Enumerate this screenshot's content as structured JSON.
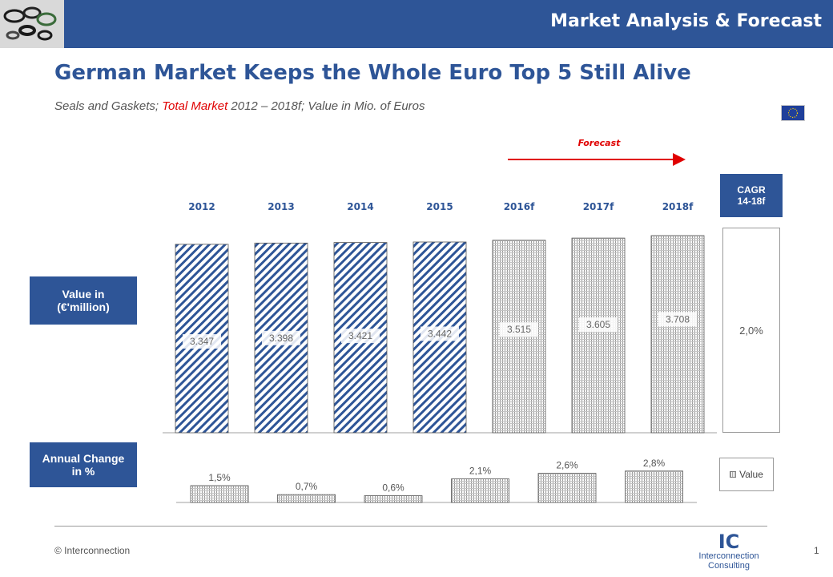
{
  "header": {
    "title": "Market Analysis & Forecast",
    "logo_icon": "seal-rings-icon"
  },
  "title": "German Market Keeps the Whole Euro Top 5 Still Alive",
  "subtitle": {
    "prefix": "Seals and Gaskets; ",
    "highlight": "Total Market",
    "suffix": " 2012 – 2018f; Value in Mio. of Euros"
  },
  "flag_icon": "eu-flag-icon",
  "labels": {
    "value_box": "Value in\n(€'million)",
    "change_box": "Annual Change\nin %",
    "cagr_title": "CAGR\n14-18f",
    "cagr_value": "2,0%",
    "forecast": "Forecast",
    "legend": "Value"
  },
  "colors": {
    "brand": "#2e5597",
    "accent": "#e00000",
    "hatch": "#2e5597",
    "dots": "#8c8c8c"
  },
  "chart_data": {
    "type": "bar",
    "categories": [
      "2012",
      "2013",
      "2014",
      "2015",
      "2016f",
      "2017f",
      "2018f"
    ],
    "value_series": {
      "values": [
        3347,
        3398,
        3421,
        3442,
        3515,
        3605,
        3708
      ],
      "labels": [
        "3.347",
        "3.398",
        "3.421",
        "3.442",
        "3.515",
        "3.605",
        "3.708"
      ],
      "forecast_from_index": 4
    },
    "change_series": {
      "categories": [
        "2013",
        "2014",
        "2015",
        "2016f",
        "2017f",
        "2018f"
      ],
      "values": [
        1.5,
        0.7,
        0.6,
        2.1,
        2.6,
        2.8
      ],
      "labels": [
        "1,5%",
        "0,7%",
        "0,6%",
        "2,1%",
        "2,6%",
        "2,8%"
      ]
    }
  },
  "footer": {
    "copyright": "© Interconnection",
    "logo_mark": "IC",
    "logo_line1": "Interconnection",
    "logo_line2": "Consulting",
    "page": "1"
  }
}
